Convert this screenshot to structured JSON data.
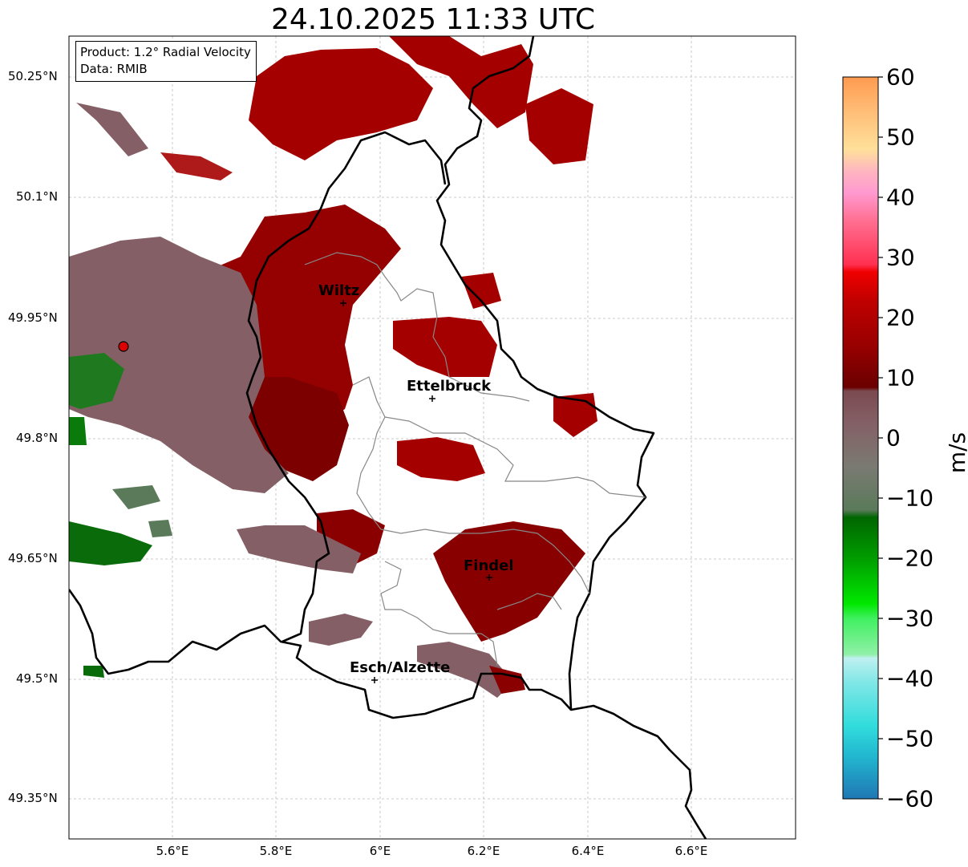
{
  "title": "24.10.2025 11:33 UTC",
  "info": {
    "line1": "Product: 1.2° Radial Velocity",
    "line2": "Data: RMIB"
  },
  "axes": {
    "lat_labels": [
      "50.25°N",
      "50.1°N",
      "49.95°N",
      "49.8°N",
      "49.65°N",
      "49.5°N",
      "49.35°N"
    ],
    "lon_labels": [
      "5.6°E",
      "5.8°E",
      "6°E",
      "6.2°E",
      "6.4°E",
      "6.6°E"
    ]
  },
  "cities": [
    {
      "name": "Wiltz"
    },
    {
      "name": "Ettelbruck"
    },
    {
      "name": "Findel"
    },
    {
      "name": "Esch/Alzette"
    }
  ],
  "colorbar": {
    "label": "m/s",
    "ticks": [
      "60",
      "50",
      "40",
      "30",
      "20",
      "10",
      "0",
      "−10",
      "−20",
      "−30",
      "−40",
      "−50",
      "−60"
    ]
  },
  "colors": {
    "strong_red": "#a50000",
    "dark_red": "#7d0000",
    "muted_mauve": "#846066",
    "gray_green": "#5a7a5a",
    "green": "#006b00",
    "bright_green": "#00e000",
    "cyan": "#40d8d8",
    "radar_marker": "#dd0000"
  }
}
